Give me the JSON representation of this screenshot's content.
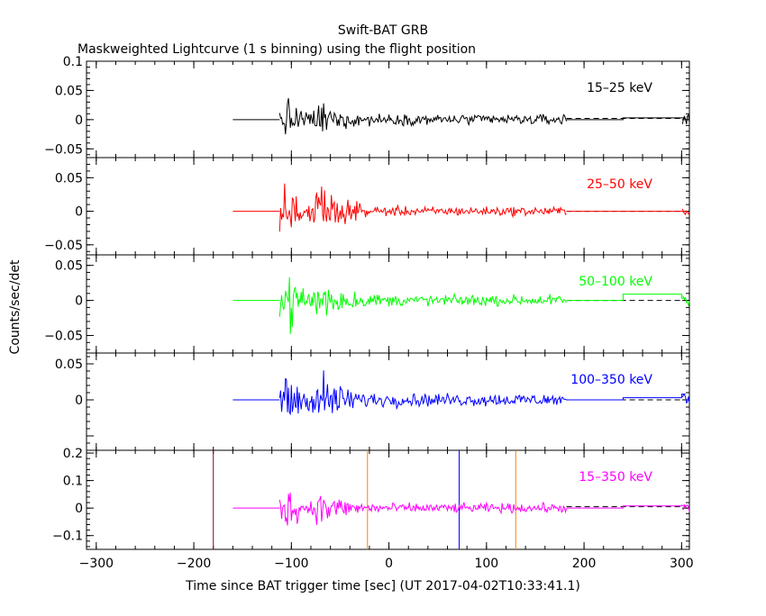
{
  "chart_data": {
    "type": "line",
    "title": "Swift-BAT GRB",
    "subtitle": "Maskweighted Lightcurve (1 s binning) using the flight position",
    "ylabel": "Counts/sec/det",
    "xlabel": "Time since BAT trigger time [sec] (UT 2017-04-02T10:33:41.1)",
    "xlim": [
      -310,
      308
    ],
    "x_ticks": [
      -300,
      -200,
      -100,
      0,
      100,
      200,
      300
    ],
    "x_tick_labels": [
      "−300",
      "−200",
      "−100",
      "0",
      "100",
      "200",
      "300"
    ],
    "data_start": -160,
    "burst_start": -112,
    "rate_end": 182,
    "panels": [
      {
        "label": "15–25 keV",
        "color": "#000000",
        "ylim": [
          -0.065,
          0.1
        ],
        "yticks": [
          -0.05,
          0,
          0.05,
          0.1
        ],
        "ytick_labels": [
          "−0.05",
          "0",
          "0.05",
          "0.1"
        ],
        "amp": 0.03,
        "tail": 0.008,
        "dashed": 0.002,
        "solid_late": [
          0.003,
          0.003
        ]
      },
      {
        "label": "25–50 keV",
        "color": "#ff0000",
        "ylim": [
          -0.065,
          0.08
        ],
        "yticks": [
          -0.05,
          0,
          0.05
        ],
        "ytick_labels": [
          "−0.05",
          "0",
          "0.05"
        ],
        "amp": 0.035,
        "tail": 0.006,
        "dashed": 0.0,
        "solid_late": [
          0.0,
          0.0
        ]
      },
      {
        "label": "50–100 keV",
        "color": "#00ff00",
        "ylim": [
          -0.075,
          0.065
        ],
        "yticks": [
          -0.05,
          0,
          0.05
        ],
        "ytick_labels": [
          "−0.05",
          "0",
          "0.05"
        ],
        "amp": 0.035,
        "tail": 0.007,
        "dashed": 0.0,
        "solid_late": [
          0.009,
          0.003
        ]
      },
      {
        "label": "100–350 keV",
        "color": "#0000ff",
        "ylim": [
          -0.07,
          0.065
        ],
        "yticks": [
          -0.05,
          0,
          0.05
        ],
        "ytick_labels": [
          "",
          "0",
          "0.05"
        ],
        "amp": 0.035,
        "tail": 0.008,
        "dashed": 0.0,
        "solid_late": [
          0.003,
          0.008
        ]
      },
      {
        "label": "15–350 keV",
        "color": "#ff00ff",
        "ylim": [
          -0.15,
          0.21
        ],
        "yticks": [
          -0.1,
          0,
          0.1,
          0.2
        ],
        "ytick_labels": [
          "−0.1",
          "0",
          "0.1",
          "0.2"
        ],
        "amp": 0.065,
        "tail": 0.015,
        "dashed": 0.005,
        "solid_late": [
          0.008,
          0.01
        ]
      }
    ],
    "vertical_lines": [
      {
        "x": -180,
        "color": "#800040"
      },
      {
        "x": -22,
        "color": "#ff8000"
      },
      {
        "x": 72,
        "color": "#0000ff"
      },
      {
        "x": 130,
        "color": "#ff8000"
      }
    ]
  }
}
